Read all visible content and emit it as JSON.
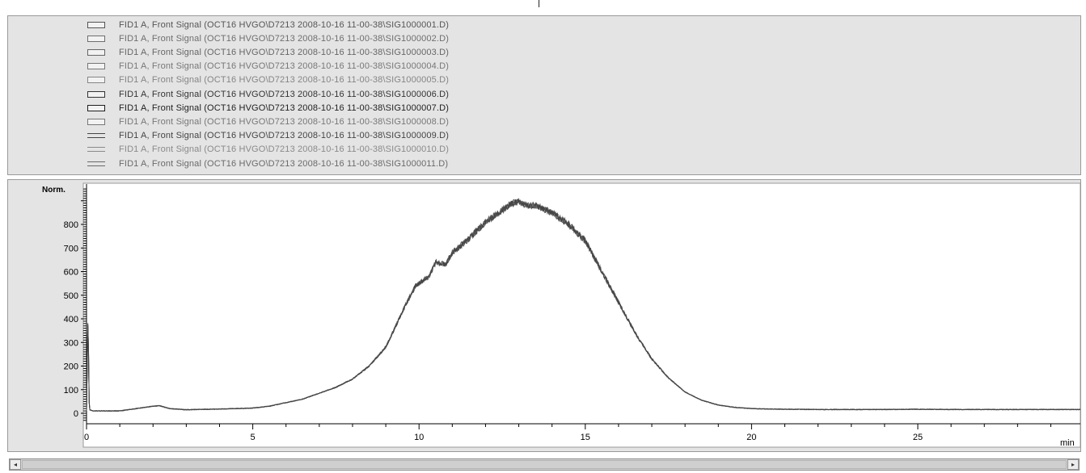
{
  "legend": {
    "items": [
      {
        "label": "FID1 A, Front Signal (OCT16 HVGO\\D7213 2008-10-16 11-00-38\\SIG1000001.D)",
        "color": "#555555",
        "style": "box"
      },
      {
        "label": "FID1 A, Front Signal (OCT16 HVGO\\D7213 2008-10-16 11-00-38\\SIG1000002.D)",
        "color": "#6e6e6e",
        "style": "box"
      },
      {
        "label": "FID1 A, Front Signal (OCT16 HVGO\\D7213 2008-10-16 11-00-38\\SIG1000003.D)",
        "color": "#666666",
        "style": "box"
      },
      {
        "label": "FID1 A, Front Signal (OCT16 HVGO\\D7213 2008-10-16 11-00-38\\SIG1000004.D)",
        "color": "#777777",
        "style": "box"
      },
      {
        "label": "FID1 A, Front Signal (OCT16 HVGO\\D7213 2008-10-16 11-00-38\\SIG1000005.D)",
        "color": "#858585",
        "style": "box"
      },
      {
        "label": "FID1 A, Front Signal (OCT16 HVGO\\D7213 2008-10-16 11-00-38\\SIG1000006.D)",
        "color": "#333333",
        "style": "box"
      },
      {
        "label": "FID1 A, Front Signal (OCT16 HVGO\\D7213 2008-10-16 11-00-38\\SIG1000007.D)",
        "color": "#1e1e1e",
        "style": "box"
      },
      {
        "label": "FID1 A, Front Signal (OCT16 HVGO\\D7213 2008-10-16 11-00-38\\SIG1000008.D)",
        "color": "#777777",
        "style": "box"
      },
      {
        "label": "FID1 A, Front Signal (OCT16 HVGO\\D7213 2008-10-16 11-00-38\\SIG1000009.D)",
        "color": "#444444",
        "style": "line"
      },
      {
        "label": "FID1 A, Front Signal (OCT16 HVGO\\D7213 2008-10-16 11-00-38\\SIG1000010.D)",
        "color": "#8a8a8a",
        "style": "line"
      },
      {
        "label": "FID1 A, Front Signal (OCT16 HVGO\\D7213 2008-10-16 11-00-38\\SIG1000011.D)",
        "color": "#6a6a6a",
        "style": "line"
      }
    ]
  },
  "chart_data": {
    "type": "line",
    "ylabel": "Norm.",
    "xlabel": "min",
    "xlim": [
      0,
      31
    ],
    "ylim": [
      -20,
      950
    ],
    "xticks": [
      0,
      5,
      10,
      15,
      20,
      25
    ],
    "yticks": [
      0,
      100,
      200,
      300,
      400,
      500,
      600,
      700,
      800
    ],
    "trace_color": "#444444",
    "series": [
      {
        "x": [
          0.0,
          0.05,
          0.07,
          0.1,
          0.15,
          0.2,
          0.5,
          1.0,
          1.5,
          2.0,
          2.2,
          2.5,
          3.0,
          4.0,
          5.0,
          5.5,
          6.0,
          6.5,
          7.0,
          7.5,
          8.0,
          8.5,
          9.0,
          9.3,
          9.6,
          9.9,
          10.0,
          10.3,
          10.5,
          10.8,
          11.0,
          11.5,
          12.0,
          12.5,
          12.8,
          13.0,
          13.2,
          13.5,
          14.0,
          14.5,
          15.0,
          15.5,
          16.0,
          16.5,
          17.0,
          17.5,
          18.0,
          18.5,
          19.0,
          19.5,
          20.0,
          20.5,
          21.0,
          22.0,
          23.0,
          24.0,
          25.0,
          26.0,
          27.0,
          28.0,
          29.0,
          30.0,
          31.0
        ],
        "y": [
          10,
          470,
          60,
          15,
          12,
          10,
          10,
          10,
          20,
          30,
          32,
          20,
          15,
          18,
          22,
          30,
          45,
          60,
          85,
          110,
          145,
          200,
          280,
          370,
          460,
          540,
          550,
          580,
          640,
          630,
          680,
          740,
          810,
          860,
          890,
          895,
          880,
          880,
          850,
          800,
          730,
          600,
          470,
          340,
          230,
          150,
          90,
          55,
          35,
          25,
          20,
          18,
          17,
          16,
          16,
          16,
          17,
          16,
          16,
          16,
          16,
          16,
          16
        ]
      }
    ]
  },
  "scrollbar": {
    "left_arrow": "◂",
    "right_arrow": "▸"
  }
}
